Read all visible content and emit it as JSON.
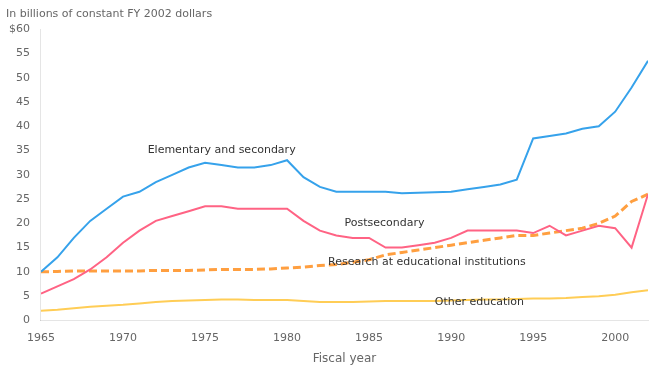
{
  "chart_data": {
    "type": "line",
    "x": [
      1965,
      1966,
      1967,
      1968,
      1969,
      1970,
      1971,
      1972,
      1973,
      1974,
      1975,
      1976,
      1977,
      1978,
      1979,
      1980,
      1981,
      1982,
      1983,
      1984,
      1985,
      1986,
      1987,
      1988,
      1989,
      1990,
      1991,
      1992,
      1993,
      1994,
      1995,
      1996,
      1997,
      1998,
      1999,
      2000,
      2001,
      2002
    ],
    "series": [
      {
        "line_style": "solid",
        "values": [
          10.0,
          13.0,
          17.0,
          20.5,
          23.0,
          25.5,
          26.5,
          28.5,
          30.0,
          31.5,
          32.5,
          32.0,
          31.5,
          31.5,
          32.0,
          33.0,
          29.5,
          27.5,
          26.5,
          26.5,
          26.5,
          26.5,
          26.2,
          26.3,
          26.4,
          26.5,
          27.0,
          27.5,
          28.0,
          29.0,
          37.5,
          38.0,
          38.5,
          39.5,
          40.0,
          43.0,
          48.0,
          53.5
        ]
      },
      {
        "line_style": "solid",
        "values": [
          5.5,
          7.0,
          8.5,
          10.5,
          13.0,
          16.0,
          18.5,
          20.5,
          21.5,
          22.5,
          23.5,
          23.5,
          23.0,
          23.0,
          23.0,
          23.0,
          20.5,
          18.5,
          17.5,
          17.0,
          17.0,
          15.0,
          15.0,
          15.5,
          16.0,
          17.0,
          18.5,
          18.5,
          18.5,
          18.5,
          18.0,
          19.5,
          17.5,
          18.5,
          19.5,
          19.0,
          15.0,
          26.0
        ]
      },
      {
        "line_style": "dashed",
        "values": [
          10.0,
          10.1,
          10.2,
          10.2,
          10.2,
          10.2,
          10.2,
          10.3,
          10.3,
          10.3,
          10.4,
          10.5,
          10.5,
          10.5,
          10.6,
          10.8,
          11.0,
          11.3,
          11.5,
          12.0,
          12.5,
          13.5,
          14.0,
          14.5,
          15.0,
          15.5,
          16.0,
          16.5,
          17.0,
          17.5,
          17.5,
          18.0,
          18.5,
          19.0,
          20.0,
          21.5,
          24.5,
          26.0
        ]
      },
      {
        "line_style": "solid",
        "values": [
          2.0,
          2.2,
          2.5,
          2.8,
          3.0,
          3.2,
          3.5,
          3.8,
          4.0,
          4.1,
          4.2,
          4.3,
          4.3,
          4.2,
          4.2,
          4.2,
          4.0,
          3.8,
          3.8,
          3.8,
          3.9,
          4.0,
          4.0,
          4.0,
          4.0,
          4.1,
          4.2,
          4.3,
          4.3,
          4.4,
          4.5,
          4.5,
          4.6,
          4.8,
          5.0,
          5.3,
          5.8,
          6.2
        ]
      }
    ],
    "annotations": [
      {
        "text": "Elementary and secondary",
        "x": 1971.5,
        "y": 34.5
      },
      {
        "text": "Postsecondary",
        "x": 1983.5,
        "y": 19.5
      },
      {
        "text": "Research at educational institutions",
        "x": 1982.5,
        "y": 11.5
      },
      {
        "text": "Other education",
        "x": 1989.0,
        "y": 3.2
      }
    ],
    "xlabel": "Fiscal year",
    "ylabel": "In billions of constant FY 2002 dollars",
    "xlim": [
      1965,
      2002
    ],
    "xticks": [
      1965,
      1970,
      1975,
      1980,
      1985,
      1990,
      1995,
      2000
    ],
    "ylim": [
      0,
      60
    ],
    "yticks": [
      0,
      5,
      10,
      15,
      20,
      25,
      30,
      35,
      40,
      45,
      50,
      55,
      {
        "value": 60,
        "label": "$60"
      }
    ],
    "grid": false
  }
}
